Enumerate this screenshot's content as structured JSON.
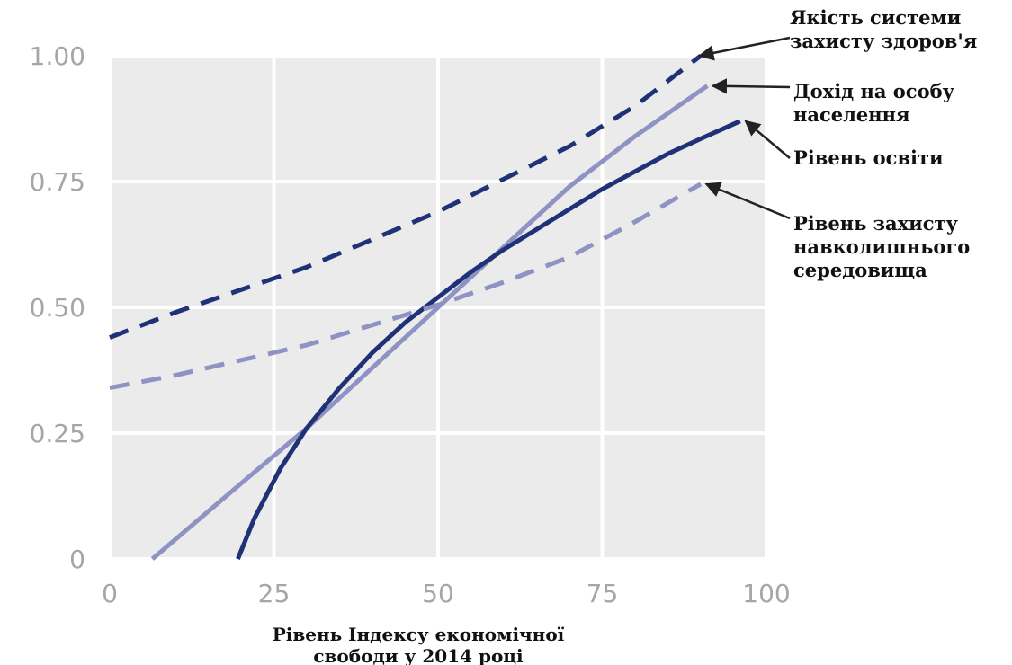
{
  "chart_data": {
    "type": "line",
    "xlabel_lines": [
      "Рівень Індексу економічної",
      "свободи у 2014 році"
    ],
    "ylabel": "",
    "xlim": [
      0,
      100
    ],
    "ylim": [
      0,
      1.0
    ],
    "x_ticks": [
      {
        "value": 0,
        "label": "0"
      },
      {
        "value": 25,
        "label": "25"
      },
      {
        "value": 50,
        "label": "50"
      },
      {
        "value": 75,
        "label": "75"
      },
      {
        "value": 100,
        "label": "100"
      }
    ],
    "y_ticks": [
      {
        "value": 0,
        "label": "0"
      },
      {
        "value": 0.25,
        "label": "0.25"
      },
      {
        "value": 0.5,
        "label": "0.50"
      },
      {
        "value": 0.75,
        "label": "0.75"
      },
      {
        "value": 1.0,
        "label": "1.00"
      }
    ],
    "grid": true,
    "background": "#ebebeb",
    "series": [
      {
        "name_lines": [
          "Якість системи",
          "захисту здоров'я"
        ],
        "color": "#1f3278",
        "style": "dashed",
        "x": [
          0,
          10,
          20,
          30,
          40,
          50,
          60,
          70,
          80,
          90
        ],
        "y": [
          0.44,
          0.49,
          0.535,
          0.58,
          0.635,
          0.69,
          0.755,
          0.82,
          0.9,
          1.0
        ]
      },
      {
        "name_lines": [
          "Дохід на особу",
          "населення"
        ],
        "color": "#8e93c4",
        "style": "solid",
        "x": [
          6.5,
          20,
          30,
          40,
          50,
          60,
          70,
          80,
          91
        ],
        "y": [
          0.0,
          0.15,
          0.26,
          0.38,
          0.5,
          0.62,
          0.74,
          0.84,
          0.94
        ]
      },
      {
        "name_lines": [
          "Рівень освіти"
        ],
        "color": "#1f3278",
        "style": "solid",
        "x": [
          19.5,
          22,
          26,
          30,
          35,
          40,
          45,
          50,
          55,
          60,
          65,
          70,
          75,
          80,
          85,
          90,
          96
        ],
        "y": [
          0.0,
          0.08,
          0.18,
          0.26,
          0.34,
          0.41,
          0.47,
          0.52,
          0.57,
          0.615,
          0.655,
          0.695,
          0.735,
          0.77,
          0.805,
          0.835,
          0.87
        ]
      },
      {
        "name_lines": [
          "Рівень захисту",
          "навколишнього",
          "середовища"
        ],
        "color": "#8e93c4",
        "style": "dashed",
        "x": [
          0,
          10,
          20,
          30,
          40,
          50,
          60,
          70,
          80,
          90
        ],
        "y": [
          0.34,
          0.365,
          0.395,
          0.425,
          0.465,
          0.505,
          0.55,
          0.6,
          0.67,
          0.745
        ]
      }
    ],
    "annotations": [
      {
        "series_index": 0,
        "arrow_to": [
          89,
          1.0
        ]
      },
      {
        "series_index": 1,
        "arrow_to": [
          91,
          0.94
        ]
      },
      {
        "series_index": 2,
        "arrow_to": [
          96,
          0.87
        ]
      },
      {
        "series_index": 3,
        "arrow_to": [
          90,
          0.745
        ]
      }
    ]
  }
}
